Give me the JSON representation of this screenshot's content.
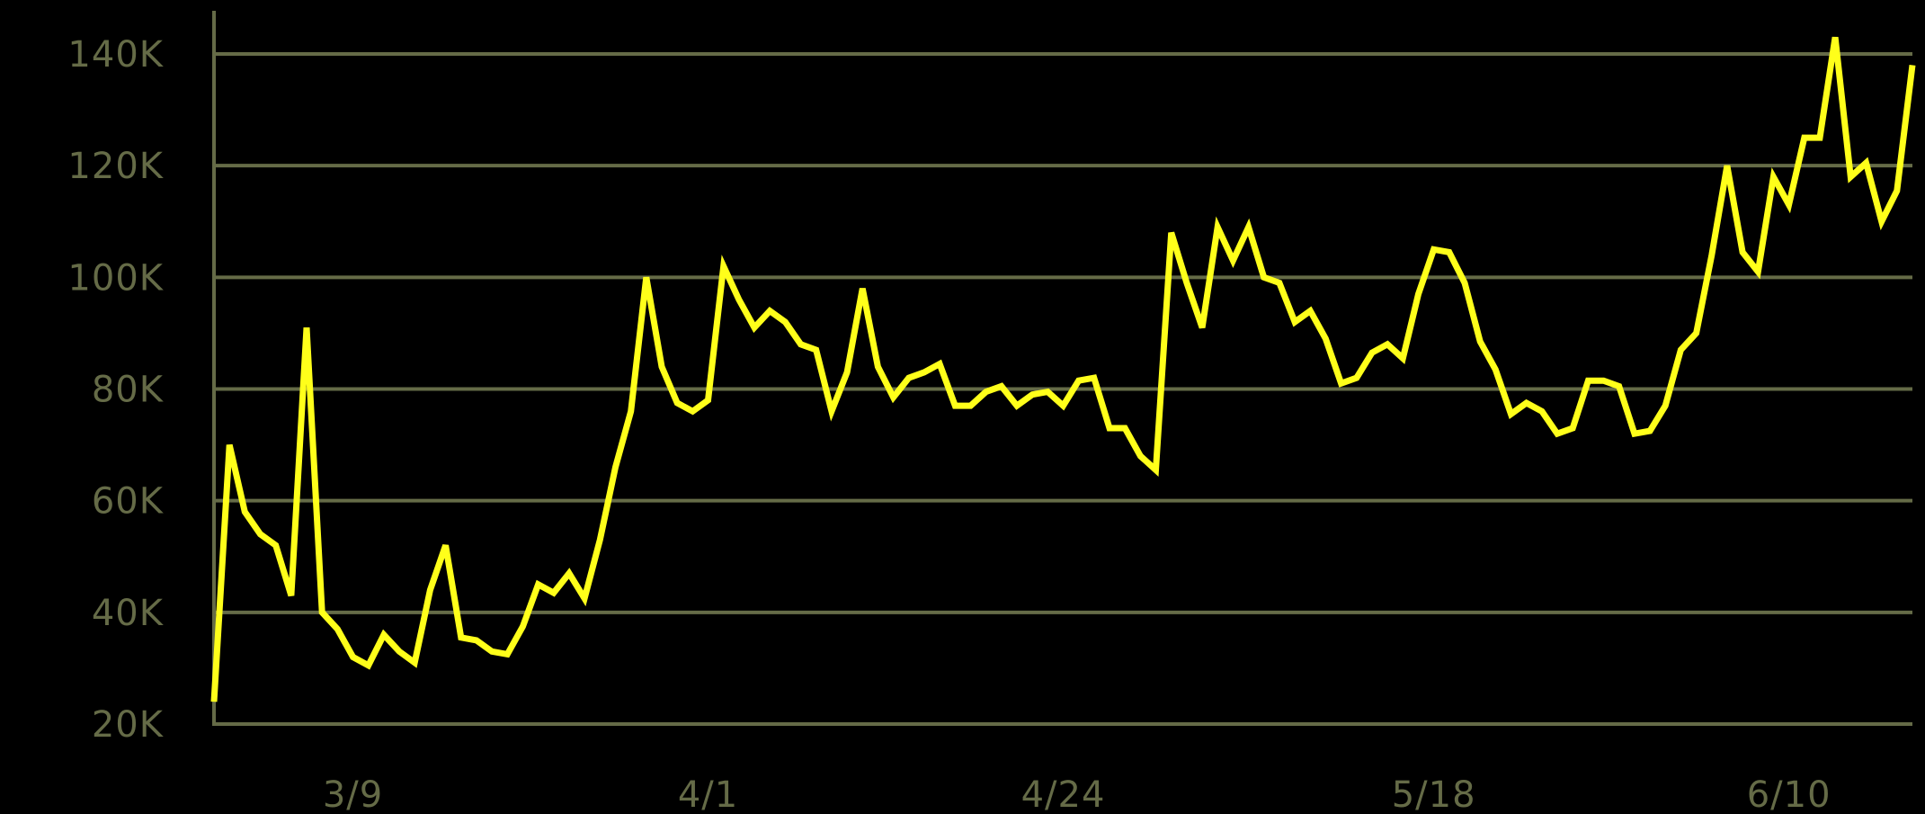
{
  "colors": {
    "background": "#000000",
    "grid": "#656b47",
    "axis_text": "#656b47",
    "line": "#ffff1a"
  },
  "chart_data": {
    "type": "line",
    "title": "",
    "xlabel": "",
    "ylabel": "",
    "x_start": "2/27",
    "x_end": "6/17",
    "x_ticks": [
      {
        "label": "3/9",
        "day_index": 9
      },
      {
        "label": "4/1",
        "day_index": 32
      },
      {
        "label": "4/24",
        "day_index": 55
      },
      {
        "label": "5/18",
        "day_index": 79
      },
      {
        "label": "6/10",
        "day_index": 102
      }
    ],
    "y_ticks": [
      20000,
      40000,
      60000,
      80000,
      100000,
      120000,
      140000
    ],
    "y_tick_labels": [
      "20K",
      "40K",
      "60K",
      "80K",
      "100K",
      "120K",
      "140K"
    ],
    "ylim": [
      20000,
      140000
    ],
    "grid": true,
    "legend": "none",
    "series": [
      {
        "values": [
          24000,
          70000,
          58000,
          54000,
          52000,
          43000,
          91000,
          40000,
          37000,
          32000,
          30500,
          36000,
          33000,
          31000,
          44000,
          52000,
          35500,
          35000,
          33000,
          32500,
          37500,
          45000,
          43500,
          47000,
          42500,
          53000,
          66000,
          76000,
          100000,
          84000,
          77500,
          76000,
          78000,
          102000,
          96000,
          91000,
          94000,
          92000,
          88000,
          87000,
          76000,
          83000,
          98000,
          84000,
          78500,
          82000,
          83000,
          84500,
          77000,
          77000,
          79500,
          80500,
          77000,
          79000,
          79500,
          77000,
          81500,
          82000,
          73000,
          73000,
          68000,
          65500,
          108000,
          99000,
          91000,
          109000,
          103000,
          109000,
          100000,
          99000,
          92000,
          94000,
          89000,
          81000,
          82000,
          86500,
          88000,
          85500,
          97000,
          105000,
          104500,
          99000,
          88500,
          83500,
          75500,
          77500,
          76000,
          72000,
          73000,
          81500,
          81500,
          80500,
          72000,
          72500,
          77000,
          87000,
          90000,
          104000,
          120000,
          104500,
          101000,
          118000,
          113000,
          125000,
          125000,
          143000,
          118000,
          120500,
          110000,
          115500,
          138000
        ]
      }
    ]
  }
}
